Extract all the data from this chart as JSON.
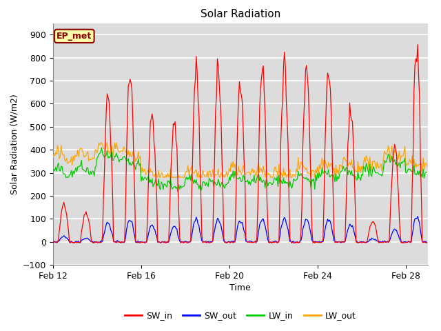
{
  "title": "Solar Radiation",
  "xlabel": "Time",
  "ylabel": "Solar Radiation (W/m2)",
  "ylim": [
    -100,
    950
  ],
  "yticks": [
    -100,
    0,
    100,
    200,
    300,
    400,
    500,
    600,
    700,
    800,
    900
  ],
  "plot_bg_color": "#dcdcdc",
  "grid_color": "white",
  "colors": {
    "SW_in": "red",
    "SW_out": "blue",
    "LW_in": "#00cc00",
    "LW_out": "orange"
  },
  "annotation_text": "EP_met",
  "annotation_bg": "#ffffaa",
  "annotation_border": "#8b0000",
  "annotation_text_color": "#8b0000",
  "n_days": 17,
  "daily_peaks_sw_in": [
    170,
    130,
    640,
    730,
    550,
    530,
    750,
    740,
    690,
    770,
    760,
    760,
    740,
    575,
    90,
    400,
    840
  ],
  "xtick_positions": [
    0,
    4,
    8,
    12,
    16
  ],
  "xtick_labels": [
    "Feb 12",
    "Feb 16",
    "Feb 20",
    "Feb 24",
    "Feb 28"
  ]
}
